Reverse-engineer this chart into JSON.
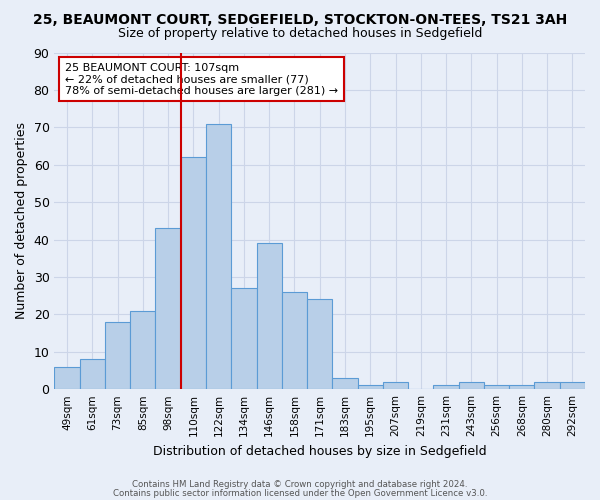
{
  "title_line1": "25, BEAUMONT COURT, SEDGEFIELD, STOCKTON-ON-TEES, TS21 3AH",
  "title_line2": "Size of property relative to detached houses in Sedgefield",
  "xlabel": "Distribution of detached houses by size in Sedgefield",
  "ylabel": "Number of detached properties",
  "categories": [
    "49sqm",
    "61sqm",
    "73sqm",
    "85sqm",
    "98sqm",
    "110sqm",
    "122sqm",
    "134sqm",
    "146sqm",
    "158sqm",
    "171sqm",
    "183sqm",
    "195sqm",
    "207sqm",
    "219sqm",
    "231sqm",
    "243sqm",
    "256sqm",
    "268sqm",
    "280sqm",
    "292sqm"
  ],
  "values": [
    6,
    8,
    18,
    21,
    43,
    62,
    71,
    27,
    39,
    26,
    24,
    3,
    1,
    2,
    0,
    1,
    2,
    1,
    1,
    2,
    2
  ],
  "bar_color": "#b8cfe8",
  "bar_edge_color": "#5b9bd5",
  "bar_edge_width": 0.8,
  "property_line_bar_index": 4,
  "annotation_title": "25 BEAUMONT COURT: 107sqm",
  "annotation_line2": "← 22% of detached houses are smaller (77)",
  "annotation_line3": "78% of semi-detached houses are larger (281) →",
  "annotation_box_color": "#ffffff",
  "annotation_box_edge": "#cc0000",
  "property_line_color": "#cc0000",
  "ylim": [
    0,
    90
  ],
  "yticks": [
    0,
    10,
    20,
    30,
    40,
    50,
    60,
    70,
    80,
    90
  ],
  "grid_color": "#ccd5e8",
  "background_color": "#e8eef8",
  "footnote1": "Contains HM Land Registry data © Crown copyright and database right 2024.",
  "footnote2": "Contains public sector information licensed under the Open Government Licence v3.0."
}
